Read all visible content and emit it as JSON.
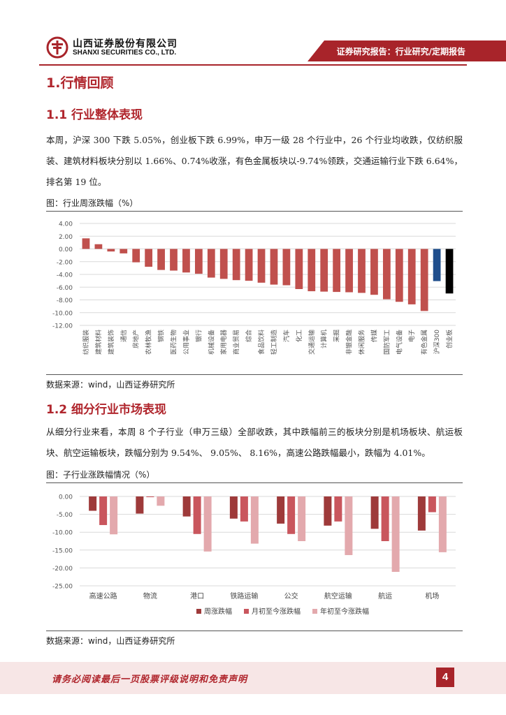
{
  "header": {
    "company_cn": "山西证券股份有限公司",
    "company_en": "SHANXI SECURITIES CO., LTD.",
    "report_type": "证券研究报告：行业研究/定期报告"
  },
  "section1": {
    "title": "1.行情回顾",
    "sub1": {
      "title": "1.1  行业整体表现",
      "paragraph": "本周，沪深 300 下跌 5.05%，创业板下跌 6.99%，申万一级 28 个行业中，26 个行业均收跌，仅纺织服装、建筑材料板块分别以 1.66%、0.74%收涨，有色金属板块以-9.74%领跌，交通运输行业下跌 6.64%，排名第 19 位。",
      "figure_title": "图：行业周涨跌幅（%）",
      "source": "数据来源：wind，山西证券研究所"
    },
    "sub2": {
      "title": "1.2  细分行业市场表现",
      "paragraph": "从细分行业来看，本周 8 个子行业（申万三级）全部收跌，其中跌幅前三的板块分别是机场板块、航运板块、航空运输板块，跌幅分别为 9.54%、 9.05%、 8.16%，高速公路跌幅最小，跌幅为 4.01%。",
      "figure_title": "图：子行业涨跌幅情况（%）",
      "source": "数据来源：wind，山西证券研究所"
    }
  },
  "chart_data": [
    {
      "type": "bar",
      "title": "",
      "xlabel": "",
      "ylabel": "",
      "ylim": [
        -12,
        4
      ],
      "yticks": [
        "4.00",
        "2.00",
        "0.00",
        "-2.00",
        "-4.00",
        "-6.00",
        "-8.00",
        "-10.00",
        "-12.00"
      ],
      "grid": true,
      "categories": [
        "纺织服装",
        "建筑材料",
        "建筑装饰",
        "通信",
        "房地产",
        "农林牧渔",
        "钢铁",
        "医药生物",
        "公用事业",
        "银行",
        "机械设备",
        "家用电器",
        "商业贸易",
        "综合",
        "食品饮料",
        "轻工制造",
        "汽车",
        "化工",
        "交通运输",
        "计算机",
        "采掘",
        "非银金融",
        "休闲服务",
        "传媒",
        "国防军工",
        "电气设备",
        "电子",
        "有色金属",
        "沪深300",
        "创业板"
      ],
      "values": [
        1.66,
        0.74,
        -0.4,
        -0.7,
        -2.1,
        -2.8,
        -3.3,
        -3.4,
        -3.7,
        -3.9,
        -4.5,
        -4.7,
        -4.9,
        -5.0,
        -5.3,
        -5.6,
        -5.7,
        -6.3,
        -6.64,
        -6.7,
        -6.75,
        -6.8,
        -6.9,
        -7.2,
        -7.9,
        -8.3,
        -8.7,
        -9.74,
        -5.05,
        -6.99
      ],
      "colors": [
        "#c0504d",
        "#c0504d",
        "#c0504d",
        "#c0504d",
        "#c0504d",
        "#c0504d",
        "#c0504d",
        "#c0504d",
        "#c0504d",
        "#c0504d",
        "#c0504d",
        "#c0504d",
        "#c0504d",
        "#c0504d",
        "#c0504d",
        "#c0504d",
        "#c0504d",
        "#c0504d",
        "#c0504d",
        "#c0504d",
        "#c0504d",
        "#c0504d",
        "#c0504d",
        "#c0504d",
        "#c0504d",
        "#c0504d",
        "#c0504d",
        "#c0504d",
        "#1f4e8c",
        "#000000"
      ]
    },
    {
      "type": "bar",
      "title": "",
      "xlabel": "",
      "ylabel": "",
      "ylim": [
        -25,
        0
      ],
      "yticks": [
        "0.00",
        "-5.00",
        "-10.00",
        "-15.00",
        "-20.00",
        "-25.00"
      ],
      "grid": true,
      "legend_position": "bottom",
      "categories": [
        "高速公路",
        "物流",
        "港口",
        "铁路运输",
        "公交",
        "航空运输",
        "航运",
        "机场"
      ],
      "series": [
        {
          "name": "周涨跌幅",
          "color": "#9e3a3a",
          "values": [
            -4.01,
            -4.8,
            -5.6,
            -6.2,
            -7.6,
            -8.16,
            -9.05,
            -9.54
          ]
        },
        {
          "name": "月初至今涨跌幅",
          "color": "#c9565d",
          "values": [
            -8.0,
            -0.2,
            -10.5,
            -7.0,
            -10.5,
            -7.0,
            -12.5,
            -4.4
          ]
        },
        {
          "name": "年初至今涨跌幅",
          "color": "#e3a9ad",
          "values": [
            -10.6,
            -2.6,
            -15.4,
            -13.2,
            -12.5,
            -16.4,
            -21.1,
            -15.6
          ]
        }
      ]
    }
  ],
  "footer": {
    "disclaimer": "请务必阅读最后一页股票评级说明和免责声明",
    "page_number": "4"
  },
  "colors": {
    "brand": "#a8242a",
    "heading": "#b0262d"
  }
}
